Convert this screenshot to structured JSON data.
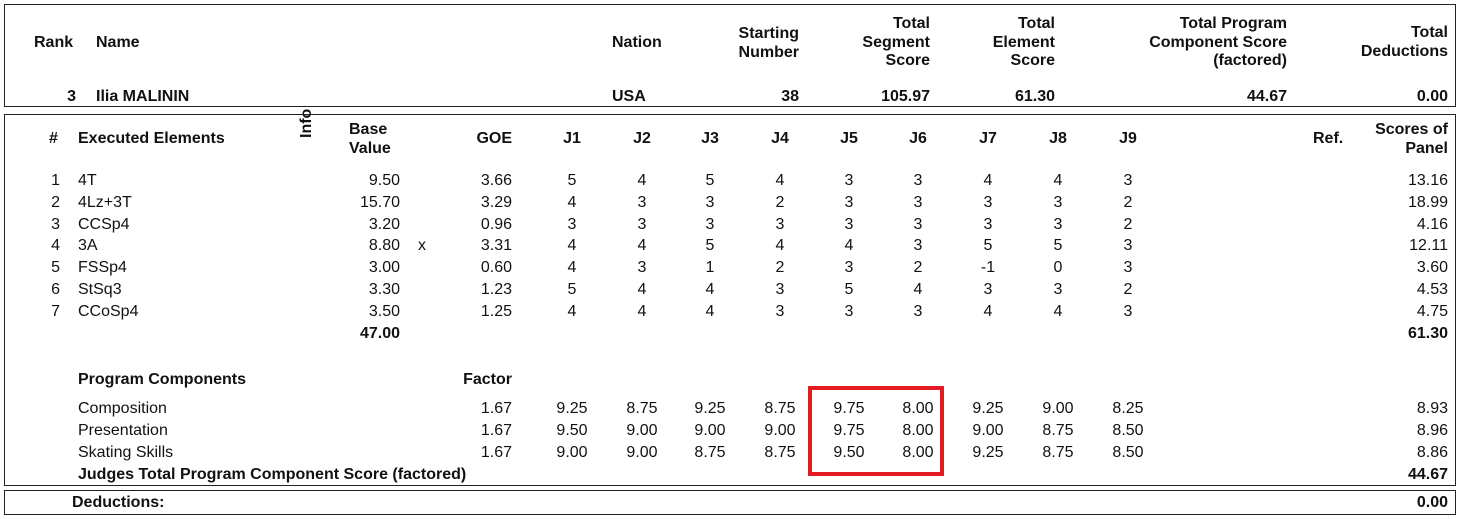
{
  "header": {
    "rank_label": "Rank",
    "name_label": "Name",
    "nation_label": "Nation",
    "starting_number_label": [
      "Starting",
      "Number"
    ],
    "total_segment_score_label": [
      "Total",
      "Segment",
      "Score"
    ],
    "total_element_score_label": [
      "Total",
      "Element",
      "Score"
    ],
    "total_pcs_label": [
      "Total Program",
      "Component Score",
      "(factored)"
    ],
    "total_deductions_label": [
      "Total",
      "Deductions"
    ]
  },
  "skater": {
    "rank": "3",
    "name": "Ilia MALININ",
    "nation": "USA",
    "starting_number": "38",
    "total_segment_score": "105.97",
    "total_element_score": "61.30",
    "total_pcs": "44.67",
    "total_deductions": "0.00"
  },
  "elements_header": {
    "num": "#",
    "executed": "Executed Elements",
    "info": "Info",
    "base_value": [
      "Base",
      "Value"
    ],
    "goe": "GOE",
    "judges": [
      "J1",
      "J2",
      "J3",
      "J4",
      "J5",
      "J6",
      "J7",
      "J8",
      "J9"
    ],
    "ref": "Ref.",
    "scores_of_panel": [
      "Scores of",
      "Panel"
    ]
  },
  "elements": [
    {
      "num": "1",
      "name": "4T",
      "base": "9.50",
      "info": "",
      "goe": "3.66",
      "judges": [
        "5",
        "4",
        "5",
        "4",
        "3",
        "3",
        "4",
        "4",
        "3"
      ],
      "panel": "13.16"
    },
    {
      "num": "2",
      "name": "4Lz+3T",
      "base": "15.70",
      "info": "",
      "goe": "3.29",
      "judges": [
        "4",
        "3",
        "3",
        "2",
        "3",
        "3",
        "3",
        "3",
        "2"
      ],
      "panel": "18.99"
    },
    {
      "num": "3",
      "name": "CCSp4",
      "base": "3.20",
      "info": "",
      "goe": "0.96",
      "judges": [
        "3",
        "3",
        "3",
        "3",
        "3",
        "3",
        "3",
        "3",
        "2"
      ],
      "panel": "4.16"
    },
    {
      "num": "4",
      "name": "3A",
      "base": "8.80",
      "info": "x",
      "goe": "3.31",
      "judges": [
        "4",
        "4",
        "5",
        "4",
        "4",
        "3",
        "5",
        "5",
        "3"
      ],
      "panel": "12.11"
    },
    {
      "num": "5",
      "name": "FSSp4",
      "base": "3.00",
      "info": "",
      "goe": "0.60",
      "judges": [
        "4",
        "3",
        "1",
        "2",
        "3",
        "2",
        "-1",
        "0",
        "3"
      ],
      "panel": "3.60"
    },
    {
      "num": "6",
      "name": "StSq3",
      "base": "3.30",
      "info": "",
      "goe": "1.23",
      "judges": [
        "5",
        "4",
        "4",
        "3",
        "5",
        "4",
        "3",
        "3",
        "2"
      ],
      "panel": "4.53"
    },
    {
      "num": "7",
      "name": "CCoSp4",
      "base": "3.50",
      "info": "",
      "goe": "1.25",
      "judges": [
        "4",
        "4",
        "4",
        "3",
        "3",
        "3",
        "4",
        "4",
        "3"
      ],
      "panel": "4.75"
    }
  ],
  "elements_base_total": "47.00",
  "elements_panel_total": "61.30",
  "program_components": {
    "title": "Program Components",
    "factor_label": "Factor",
    "rows": [
      {
        "name": "Composition",
        "factor": "1.67",
        "judges": [
          "9.25",
          "8.75",
          "9.25",
          "8.75",
          "9.75",
          "8.00",
          "9.25",
          "9.00",
          "8.25"
        ],
        "panel": "8.93"
      },
      {
        "name": "Presentation",
        "factor": "1.67",
        "judges": [
          "9.50",
          "9.00",
          "9.00",
          "9.00",
          "9.75",
          "8.00",
          "9.00",
          "8.75",
          "8.50"
        ],
        "panel": "8.96"
      },
      {
        "name": "Skating Skills",
        "factor": "1.67",
        "judges": [
          "9.00",
          "9.00",
          "8.75",
          "8.75",
          "9.50",
          "8.00",
          "9.25",
          "8.75",
          "8.50"
        ],
        "panel": "8.86"
      }
    ],
    "total_label": "Judges Total Program Component Score (factored)",
    "total_value": "44.67"
  },
  "deductions": {
    "label": "Deductions:",
    "value": "0.00"
  },
  "colors": {
    "highlight": "#e31b23"
  }
}
